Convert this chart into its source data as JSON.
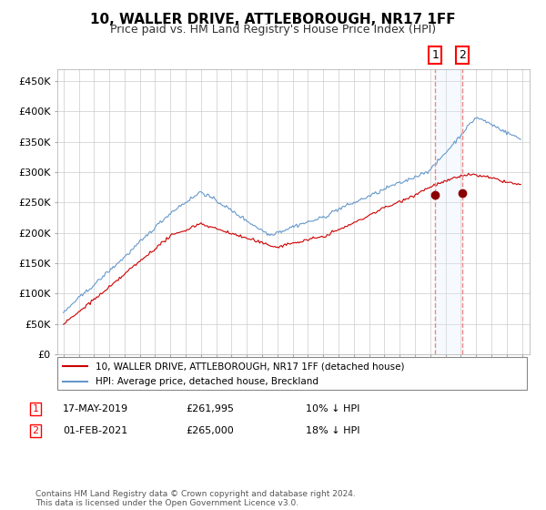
{
  "title": "10, WALLER DRIVE, ATTLEBOROUGH, NR17 1FF",
  "subtitle": "Price paid vs. HM Land Registry's House Price Index (HPI)",
  "ylim": [
    0,
    470000
  ],
  "yticks": [
    0,
    50000,
    100000,
    150000,
    200000,
    250000,
    300000,
    350000,
    400000,
    450000
  ],
  "ytick_labels": [
    "£0",
    "£50K",
    "£100K",
    "£150K",
    "£200K",
    "£250K",
    "£300K",
    "£350K",
    "£400K",
    "£450K"
  ],
  "sale1_date": "17-MAY-2019",
  "sale1_price": 261995,
  "sale1_pct": "10%",
  "sale2_date": "01-FEB-2021",
  "sale2_price": 265000,
  "sale2_pct": "18%",
  "legend_label1": "10, WALLER DRIVE, ATTLEBOROUGH, NR17 1FF (detached house)",
  "legend_label2": "HPI: Average price, detached house, Breckland",
  "footer": "Contains HM Land Registry data © Crown copyright and database right 2024.\nThis data is licensed under the Open Government Licence v3.0.",
  "red_color": "#cc0000",
  "blue_color": "#6699cc",
  "sale_dot_color": "#880000",
  "vline_color": "#ee8888",
  "shade_color": "#ddeeff",
  "background_color": "#ffffff",
  "grid_color": "#cccccc",
  "title_fontsize": 11,
  "subtitle_fontsize": 9
}
